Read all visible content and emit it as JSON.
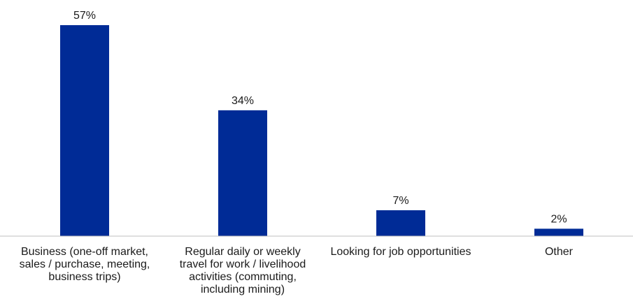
{
  "chart_data": {
    "type": "bar",
    "categories": [
      [
        "Business (one-off market,",
        "sales / purchase, meeting,",
        "business trips)"
      ],
      [
        "Regular daily or weekly",
        "travel for work / livelihood",
        "activities (commuting,",
        "including mining)"
      ],
      [
        "Looking for job opportunities"
      ],
      [
        "Other"
      ]
    ],
    "values": [
      57,
      34,
      7,
      2
    ],
    "value_labels": [
      "57%",
      "34%",
      "7%",
      "2%"
    ],
    "title": "",
    "xlabel": "",
    "ylabel": "",
    "ylim": [
      0,
      57
    ],
    "grid": false,
    "legend": "none",
    "bar_color": "#002B96",
    "axis_color": "#bfbfbf"
  }
}
